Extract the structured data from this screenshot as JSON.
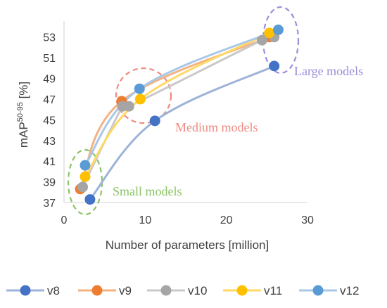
{
  "chart_data": {
    "type": "line",
    "xlabel": "Number of parameters [million]",
    "ylabel_main": "mAP",
    "ylabel_sup": "50-95",
    "ylabel_suffix": " [%]",
    "xlim": [
      0,
      30
    ],
    "ylim": [
      37,
      54
    ],
    "x_ticks": [
      0,
      10,
      20,
      30
    ],
    "y_ticks": [
      37,
      39,
      41,
      43,
      45,
      47,
      49,
      51,
      53
    ],
    "grid": false,
    "legend_placement": "bottom",
    "series": [
      {
        "name": "v8",
        "color": "#4472C4",
        "line_color": "#9DB3D8",
        "x": [
          3.2,
          11.2,
          25.9
        ],
        "y": [
          37.3,
          44.9,
          50.2
        ]
      },
      {
        "name": "v9",
        "color": "#ED7D31",
        "line_color": "#F4B183",
        "x": [
          2.0,
          7.1,
          25.3
        ],
        "y": [
          38.3,
          46.8,
          53.0
        ]
      },
      {
        "name": "v10",
        "color": "#A5A5A5",
        "line_color": "#C9C9C9",
        "x": [
          2.3,
          7.2,
          8.0,
          24.4,
          25.9
        ],
        "y": [
          38.5,
          46.3,
          46.3,
          52.7,
          53.0
        ]
      },
      {
        "name": "v11",
        "color": "#FFC000",
        "line_color": "#FFD966",
        "x": [
          2.6,
          9.4,
          25.3
        ],
        "y": [
          39.5,
          47.0,
          53.4
        ]
      },
      {
        "name": "v12",
        "color": "#5B9BD5",
        "line_color": "#A9C8E8",
        "x": [
          2.6,
          9.3,
          26.4
        ],
        "y": [
          40.6,
          48.0,
          53.7
        ]
      }
    ],
    "annotations": [
      {
        "text": "Small models",
        "color": "#8CC466"
      },
      {
        "text": "Medium models",
        "color": "#EE8A80"
      },
      {
        "text": "Large models",
        "color": "#9B8EDB"
      }
    ]
  }
}
